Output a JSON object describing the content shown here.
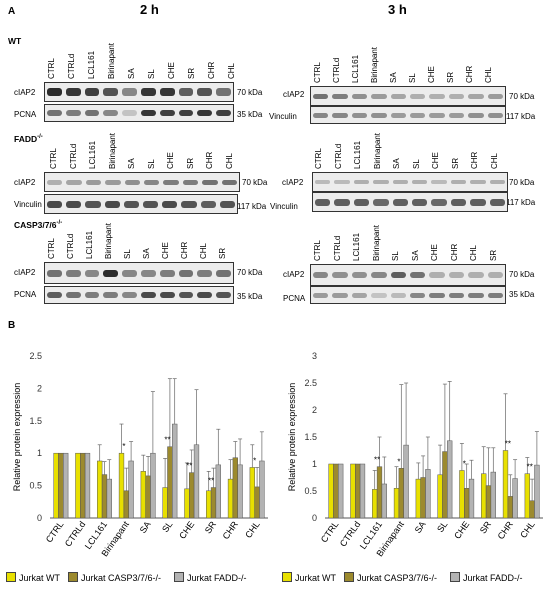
{
  "panel_a_label": "A",
  "panel_b_label": "B",
  "time_2h": "2 h",
  "time_3h": "3 h",
  "genotypes": {
    "wt": "WT",
    "fadd": "FADD",
    "fadd_sup": "-/-",
    "casp": "CASP3/7/6",
    "casp_sup": "-/-"
  },
  "protein_labels": {
    "ciap2": "cIAP2",
    "pcna": "PCNA",
    "vinculin": "Vinculin"
  },
  "kda": {
    "k70": "70 kDa",
    "k35": "35 kDa",
    "k117": "117 kDa"
  },
  "lanes_std": [
    "CTRL",
    "CTRLd",
    "LCL161",
    "Birinapant",
    "SA",
    "SL",
    "CHE",
    "SR",
    "CHR",
    "CHL"
  ],
  "lanes_casp": [
    "CTRL",
    "CTRLd",
    "LCL161",
    "Birinapant",
    "SL",
    "SA",
    "CHE",
    "CHR",
    "CHL",
    "SR"
  ],
  "colors": {
    "wt": "#e8e000",
    "casp": "#9c8a2e",
    "fadd": "#b3b3b3",
    "sig_star": "#000000"
  },
  "legend": [
    "Jurkat WT",
    "Jurkat CASP3/7/6-/-",
    "Jurkat FADD-/-"
  ],
  "chart_data": [
    {
      "type": "bar",
      "ylabel": "Relative protein expression",
      "ylim": [
        0,
        2.5
      ],
      "yticks": [
        "0",
        "0.5",
        "1",
        "1.5",
        "2",
        "2.5"
      ],
      "categories": [
        "CTRL",
        "CTRLd",
        "LCL161",
        "Birinapant",
        "SA",
        "SL",
        "CHE",
        "SR",
        "CHR",
        "CHL"
      ],
      "series": [
        {
          "name": "Jurkat WT",
          "values": [
            1,
            1,
            0.88,
            1.0,
            0.72,
            0.47,
            0.45,
            0.42,
            0.6,
            0.78
          ],
          "err": [
            0,
            0,
            0.25,
            0.45,
            0.25,
            0.45,
            0.4,
            0.3,
            0.3,
            0.35
          ]
        },
        {
          "name": "Jurkat CASP3/7/6-/-",
          "values": [
            1,
            1,
            0.67,
            0.42,
            0.65,
            1.1,
            0.7,
            0.47,
            0.93,
            0.48
          ],
          "err": [
            0,
            0,
            0.2,
            0.35,
            0.3,
            1.05,
            0.35,
            0.3,
            0.25,
            0.3
          ]
        },
        {
          "name": "Jurkat FADD-/-",
          "values": [
            1,
            1,
            0.6,
            0.88,
            1.0,
            1.45,
            1.13,
            0.82,
            0.82,
            0.88
          ],
          "err": [
            0,
            0,
            0.3,
            0.3,
            0.95,
            0.7,
            0.85,
            0.55,
            0.4,
            0.45
          ]
        }
      ],
      "stars": [
        {
          "cat": 3,
          "text": "*"
        },
        {
          "cat": 5,
          "text": "**"
        },
        {
          "cat": 6,
          "text": "**"
        },
        {
          "cat": 7,
          "text": "**"
        },
        {
          "cat": 9,
          "text": "*"
        }
      ]
    },
    {
      "type": "bar",
      "ylabel": "Relative protein expression",
      "ylim": [
        0,
        3
      ],
      "yticks": [
        "0",
        "0.5",
        "1",
        "1.5",
        "2",
        "2.5",
        "3"
      ],
      "categories": [
        "CTRL",
        "CTRLd",
        "LCL161",
        "Birinapant",
        "SA",
        "SL",
        "CHE",
        "SR",
        "CHR",
        "CHL"
      ],
      "series": [
        {
          "name": "Jurkat WT",
          "values": [
            1,
            1,
            0.53,
            0.55,
            0.72,
            0.8,
            0.88,
            0.82,
            1.25,
            0.82
          ],
          "err": [
            0,
            0,
            0.35,
            0.4,
            0.3,
            0.55,
            0.5,
            0.5,
            1.05,
            0.3
          ]
        },
        {
          "name": "Jurkat CASP3/7/6-/-",
          "values": [
            1,
            1,
            0.95,
            0.92,
            0.75,
            1.23,
            0.55,
            0.6,
            0.4,
            0.32
          ],
          "err": [
            0,
            0,
            0.55,
            1.55,
            0.4,
            1.25,
            0.45,
            0.7,
            0.4,
            0.4
          ]
        },
        {
          "name": "Jurkat FADD-/-",
          "values": [
            1,
            1,
            0.63,
            1.35,
            0.9,
            1.43,
            0.72,
            0.85,
            0.73,
            0.98
          ],
          "err": [
            0,
            0,
            0.5,
            1.15,
            0.6,
            1.1,
            0.35,
            0.45,
            0.35,
            0.62
          ]
        }
      ],
      "stars": [
        {
          "cat": 2,
          "text": "**"
        },
        {
          "cat": 3,
          "text": "*"
        },
        {
          "cat": 6,
          "text": "*"
        },
        {
          "cat": 8,
          "text": "**"
        },
        {
          "cat": 9,
          "text": "**"
        }
      ]
    }
  ]
}
